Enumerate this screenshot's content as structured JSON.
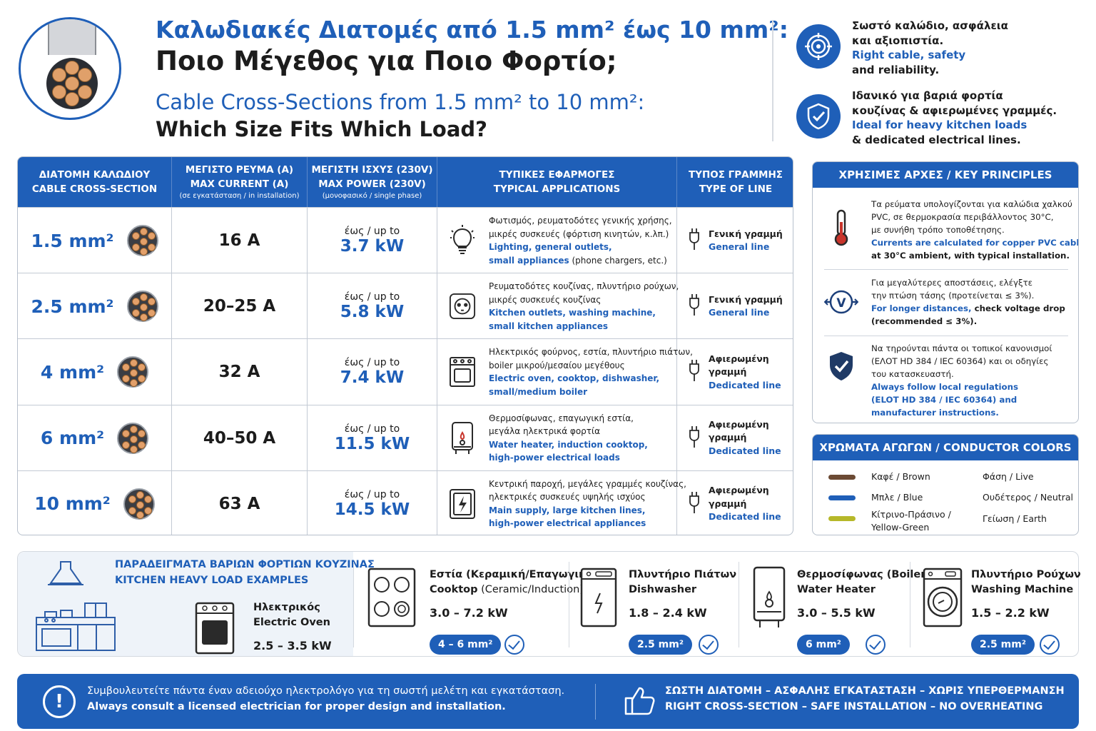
{
  "header": {
    "title_line1": "Καλωδιακές Διατομές από 1.5 mm² έως 10 mm²:",
    "title_line2": "Ποιο Μέγεθος για Ποιο Φορτίο;",
    "subtitle_line1": "Cable Cross-Sections from 1.5 mm² to 10 mm²:",
    "subtitle_line2": "Which Size Fits Which Load?",
    "highlights": [
      {
        "icon": "target-icon",
        "gr1": "Σωστό καλώδιο, ασφάλεια",
        "gr2": "και αξιοπιστία.",
        "en1": "Right cable, safety",
        "en2": "and reliability."
      },
      {
        "icon": "shield-check-icon",
        "gr1": "Ιδανικό για βαριά φορτία",
        "gr2": "κουζίνας & αφιερωμένες γραμμές.",
        "en1": "Ideal for heavy kitchen loads",
        "en2": "& dedicated electrical lines."
      }
    ]
  },
  "table": {
    "headers": [
      {
        "l1": "ΔΙΑΤΟΜΗ ΚΑΛΩΔΙΟΥ",
        "l2": "CABLE CROSS-SECTION",
        "l3": ""
      },
      {
        "l1": "ΜΕΓΙΣΤΟ ΡΕΥΜΑ (A)",
        "l2": "MAX CURRENT (A)",
        "l3": "(σε εγκατάσταση / in installation)"
      },
      {
        "l1": "ΜΕΓΙΣΤΗ ΙΣΧΥΣ (230V)",
        "l2": "MAX POWER (230V)",
        "l3": "(μονοφασικό / single phase)"
      },
      {
        "l1": "ΤΥΠΙΚΕΣ ΕΦΑΡΜΟΓΕΣ",
        "l2": "TYPICAL APPLICATIONS",
        "l3": ""
      },
      {
        "l1": "ΤΥΠΟΣ ΓΡΑΜΜΗΣ",
        "l2": "TYPE OF LINE",
        "l3": ""
      }
    ],
    "up_to": "έως / up to",
    "rows": [
      {
        "size": "1.5 mm²",
        "current": "16 A",
        "power": "3.7 kW",
        "icon": "lightbulb-icon",
        "gr1": "Φωτισμός, ρευματοδότες γενικής χρήσης,",
        "gr2": "μικρές συσκευές (φόρτιση κινητών, κ.λπ.)",
        "en1": "Lighting, general outlets,",
        "en2": "small appliances",
        "en2b": " (phone chargers, etc.)",
        "line_gr": "Γενική γραμμή",
        "line_en": "General line"
      },
      {
        "size": "2.5 mm²",
        "current": "20–25 A",
        "power": "5.8 kW",
        "icon": "socket-icon",
        "gr1": "Ρευματοδότες κουζίνας, πλυντήριο ρούχων,",
        "gr2": "μικρές συσκευές κουζίνας",
        "en1": "Kitchen outlets, washing machine,",
        "en2": "small kitchen appliances",
        "en2b": "",
        "line_gr": "Γενική γραμμή",
        "line_en": "General line"
      },
      {
        "size": "4 mm²",
        "current": "32 A",
        "power": "7.4 kW",
        "icon": "oven-icon",
        "gr1": "Ηλεκτρικός φούρνος, εστία, πλυντήριο πιάτων,",
        "gr2": "boiler μικρού/μεσαίου μεγέθους",
        "en1": "Electric oven, cooktop, dishwasher,",
        "en2": "small/medium boiler",
        "en2b": "",
        "line_gr": "Αφιερωμένη γραμμή",
        "line_en": "Dedicated line"
      },
      {
        "size": "6 mm²",
        "current": "40–50 A",
        "power": "11.5 kW",
        "icon": "water-heater-icon",
        "gr1": "Θερμοσίφωνας, επαγωγική εστία,",
        "gr2": "μεγάλα ηλεκτρικά φορτία",
        "en1": "Water heater, induction cooktop,",
        "en2": "high-power electrical loads",
        "en2b": "",
        "line_gr": "Αφιερωμένη γραμμή",
        "line_en": "Dedicated line"
      },
      {
        "size": "10 mm²",
        "current": "63 A",
        "power": "14.5 kW",
        "icon": "power-panel-icon",
        "gr1": "Κεντρική παροχή, μεγάλες γραμμές κουζίνας,",
        "gr2": "ηλεκτρικές συσκευές υψηλής ισχύος",
        "en1": "Main supply, large kitchen lines,",
        "en2": "high-power electrical appliances",
        "en2b": "",
        "line_gr": "Αφιερωμένη γραμμή",
        "line_en": "Dedicated line"
      }
    ]
  },
  "principles": {
    "title": "ΧΡΗΣΙΜΕΣ ΑΡΧΕΣ / KEY PRINCIPLES",
    "items": [
      {
        "icon": "thermometer-icon",
        "lines": [
          "Τα ρεύματα υπολογίζονται για καλώδια χαλκού",
          "PVC, σε θερμοκρασία περιβάλλοντος 30°C,",
          "με συνήθη τρόπο τοποθέτησης."
        ],
        "en": [
          "Currents are calculated for copper PVC cables"
        ],
        "enb": [
          "at 30°C ambient, with typical installation."
        ]
      },
      {
        "icon": "voltage-drop-icon",
        "lines": [
          "Για μεγαλύτερες αποστάσεις, ελέγξτε",
          "την πτώση τάσης (προτείνεται ≤ 3%)."
        ],
        "en": [
          "For longer distances,"
        ],
        "enb_inline": " check voltage drop",
        "enb": [
          "(recommended ≤ 3%)."
        ]
      },
      {
        "icon": "shield-check-icon",
        "lines": [
          "Να τηρούνται πάντα οι τοπικοί κανονισμοί",
          "(ΕΛΟΤ HD 384 / IEC 60364) και οι οδηγίες",
          "του κατασκευαστή."
        ],
        "en": [
          "Always follow local regulations",
          "(ELOT HD 384 / IEC 60364) and",
          "manufacturer instructions."
        ],
        "enb": []
      }
    ]
  },
  "colors": {
    "title": "ΧΡΩΜΑΤΑ ΑΓΩΓΩΝ / CONDUCTOR COLORS",
    "items": [
      {
        "name": "Καφέ / Brown",
        "name2": "",
        "role": "Φάση / Live",
        "swatch": "#6b4a34"
      },
      {
        "name": "Μπλε / Blue",
        "name2": "",
        "role": "Ουδέτερος / Neutral",
        "swatch": "#1f5fb8"
      },
      {
        "name": "Κίτρινο-Πράσινο /",
        "name2": "Yellow-Green",
        "role": "Γείωση / Earth",
        "swatch": "#b6b829"
      }
    ]
  },
  "kitchen": {
    "title_gr": "ΠΑΡΑΔΕΙΓΜΑΤΑ ΒΑΡΙΩΝ ΦΟΡΤΙΩΝ ΚΟΥΖΙΝΑΣ",
    "title_en": "KITCHEN HEAVY LOAD EXAMPLES",
    "oven": {
      "icon": "oven-icon",
      "gr": "Ηλεκτρικός",
      "en": "Electric Oven",
      "power": "2.5 – 3.5 kW"
    },
    "items": [
      {
        "icon": "cooktop-icon",
        "gr": "Εστία (Κεραμική/Επαγωγική)",
        "en": "Cooktop",
        "en_note": " (Ceramic/Induction)",
        "power": "3.0 – 7.2 kW",
        "cable": "4 – 6 mm²"
      },
      {
        "icon": "dishwasher-icon",
        "gr": "Πλυντήριο Πιάτων",
        "en": "Dishwasher",
        "en_note": "",
        "power": "1.8 – 2.4 kW",
        "cable": "2.5 mm²"
      },
      {
        "icon": "water-heater-icon",
        "gr": "Θερμοσίφωνας (Boiler)",
        "en": "Water Heater",
        "en_note": "",
        "power": "3.0 – 5.5 kW",
        "cable": "6 mm²"
      },
      {
        "icon": "washing-machine-icon",
        "gr": "Πλυντήριο Ρούχων",
        "en": "Washing Machine",
        "en_note": "",
        "power": "1.5 – 2.2 kW",
        "cable": "2.5 mm²"
      }
    ]
  },
  "footer": {
    "gr": "Συμβουλευτείτε πάντα έναν αδειούχο ηλεκτρολόγο για τη σωστή μελέτη και εγκατάσταση.",
    "en": "Always consult a licensed electrician for proper design and installation.",
    "slogan_gr": "ΣΩΣΤΗ ΔΙΑΤΟΜΗ – ΑΣΦΑΛΗΣ ΕΓΚΑΤΑΣΤΑΣΗ – ΧΩΡΙΣ ΥΠΕΡΘΕΡΜΑΝΣΗ",
    "slogan_en": "RIGHT CROSS-SECTION – SAFE INSTALLATION – NO OVERHEATING"
  }
}
